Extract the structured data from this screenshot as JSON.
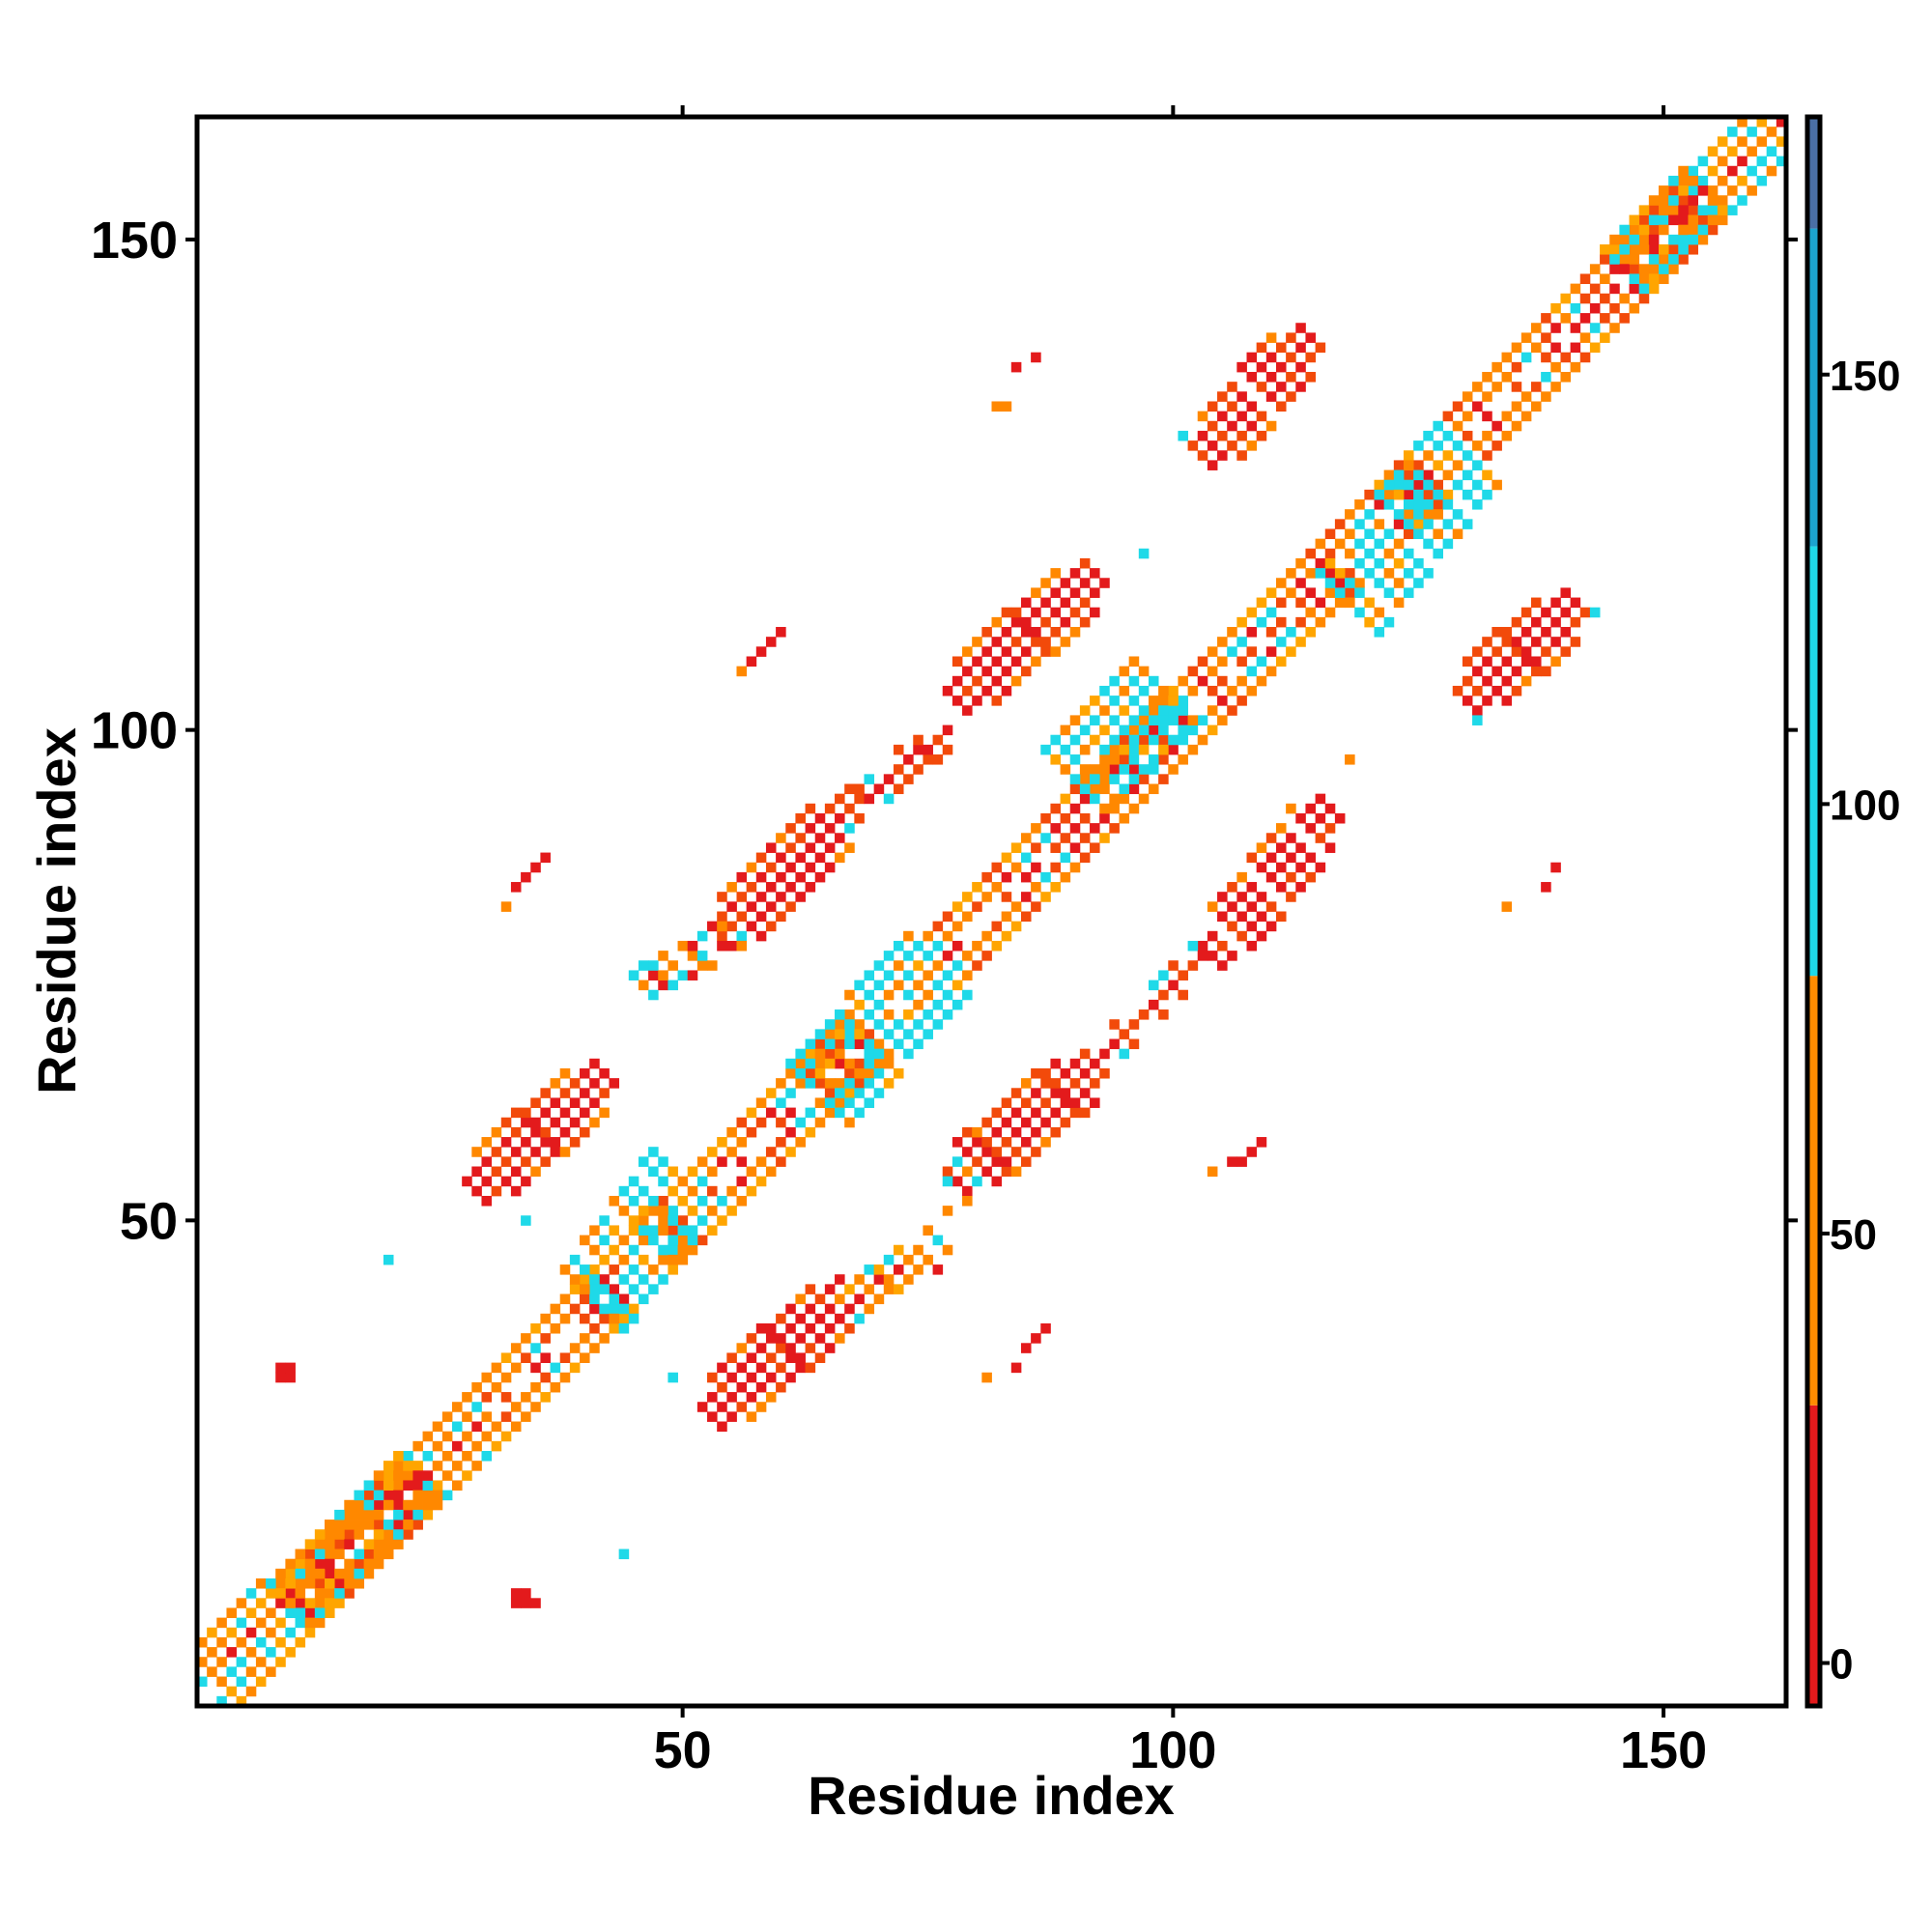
{
  "chart_data": {
    "type": "heatmap",
    "title": "",
    "xlabel": "Residue index",
    "ylabel": "Residue index",
    "xlim": [
      1,
      162
    ],
    "ylim": [
      1,
      162
    ],
    "x_ticks": [
      50,
      100,
      150
    ],
    "y_ticks": [
      50,
      100,
      150
    ],
    "grid": false,
    "legend": "colorbar-right",
    "colorbar": {
      "range": [
        -5,
        180
      ],
      "ticks": [
        0,
        50,
        100,
        150
      ],
      "stops": [
        {
          "from": -5,
          "to": 30,
          "color": "#e31a1c"
        },
        {
          "from": 30,
          "to": 80,
          "color": "#ff8c00"
        },
        {
          "from": 80,
          "to": 130,
          "color": "#1fd9e8"
        },
        {
          "from": 130,
          "to": 167,
          "color": "#1ca3cf"
        },
        {
          "from": 167,
          "to": 180,
          "color": "#4a6fa5"
        }
      ]
    },
    "class_colors": {
      "red": "#e31a1c",
      "redorange": "#f24a0a",
      "orange": "#ff8800",
      "amber": "#ffa500",
      "cyan": "#1fd9e8"
    },
    "regions": [
      {
        "kind": "diagonal",
        "x0": 1,
        "x1": 162,
        "width": 4,
        "pattern": "mix-orange-cyan"
      },
      {
        "kind": "band",
        "x0": 41,
        "x1": 50,
        "y0": 42,
        "y1": 54,
        "width": 6,
        "pattern": "cyan"
      },
      {
        "kind": "band",
        "x0": 64,
        "x1": 76,
        "y0": 63,
        "y1": 76,
        "width": 6,
        "pattern": "cyan"
      },
      {
        "kind": "band",
        "x0": 90,
        "x1": 99,
        "y0": 95,
        "y1": 104,
        "width": 6,
        "pattern": "cyan"
      },
      {
        "kind": "band",
        "x0": 118,
        "x1": 130,
        "y0": 113,
        "y1": 128,
        "width": 6,
        "pattern": "cyan"
      },
      {
        "kind": "band",
        "x0": 2,
        "x1": 30,
        "y0": 4,
        "y1": 30,
        "width": 4,
        "pattern": "cyan-sparse"
      },
      {
        "kind": "band",
        "x0": 146,
        "x1": 162,
        "y0": 147,
        "y1": 162,
        "width": 4,
        "pattern": "cyan-sparse"
      },
      {
        "kind": "blob",
        "x0": 29,
        "x1": 42,
        "y0": 53,
        "y1": 65,
        "width": 5,
        "pattern": "red-core"
      },
      {
        "kind": "blob",
        "x0": 53,
        "x1": 67,
        "y0": 30,
        "y1": 43,
        "width": 5,
        "pattern": "red-core"
      },
      {
        "kind": "blob",
        "x0": 54,
        "x1": 67,
        "y0": 79,
        "y1": 92,
        "width": 5,
        "pattern": "red-core"
      },
      {
        "kind": "blob",
        "x0": 78,
        "x1": 92,
        "y0": 54,
        "y1": 66,
        "width": 5,
        "pattern": "red-core"
      },
      {
        "kind": "blob",
        "x0": 78,
        "x1": 92,
        "y0": 103,
        "y1": 116,
        "width": 5,
        "pattern": "red-core"
      },
      {
        "kind": "blob",
        "x0": 104,
        "x1": 116,
        "y0": 77,
        "y1": 92,
        "width": 5,
        "pattern": "red-core"
      },
      {
        "kind": "blob",
        "x0": 103,
        "x1": 114,
        "y0": 128,
        "y1": 140,
        "width": 5,
        "pattern": "red-core"
      },
      {
        "kind": "blob",
        "x0": 130,
        "x1": 141,
        "y0": 103,
        "y1": 113,
        "width": 5,
        "pattern": "red-core"
      },
      {
        "kind": "blob",
        "x0": 66,
        "x1": 77,
        "y0": 91,
        "y1": 100,
        "width": 2,
        "pattern": "red-thin"
      },
      {
        "kind": "blob",
        "x0": 92,
        "x1": 103,
        "y0": 66,
        "y1": 77,
        "width": 2,
        "pattern": "red-thin"
      },
      {
        "kind": "blob",
        "x0": 46,
        "x1": 56,
        "y0": 74,
        "y1": 79,
        "width": 2,
        "pattern": "mixed-sparse"
      },
      {
        "kind": "blob",
        "x0": 75,
        "x1": 79,
        "y0": 46,
        "y1": 55,
        "width": 2,
        "pattern": "mixed-sparse"
      },
      {
        "kind": "blob",
        "x0": 67,
        "x1": 73,
        "y0": 41,
        "y1": 46,
        "width": 2,
        "pattern": "cyan-sparse"
      }
    ],
    "dots": [
      {
        "x": 9,
        "y": 34,
        "color": "red"
      },
      {
        "x": 10,
        "y": 34,
        "color": "red"
      },
      {
        "x": 9,
        "y": 35,
        "color": "red"
      },
      {
        "x": 10,
        "y": 35,
        "color": "red"
      },
      {
        "x": 33,
        "y": 11,
        "color": "red"
      },
      {
        "x": 34,
        "y": 11,
        "color": "red"
      },
      {
        "x": 35,
        "y": 11,
        "color": "red"
      },
      {
        "x": 33,
        "y": 12,
        "color": "red"
      },
      {
        "x": 34,
        "y": 12,
        "color": "red"
      },
      {
        "x": 20,
        "y": 46,
        "color": "cyan"
      },
      {
        "x": 34,
        "y": 50,
        "color": "cyan"
      },
      {
        "x": 44,
        "y": 16,
        "color": "cyan"
      },
      {
        "x": 49,
        "y": 34,
        "color": "cyan"
      },
      {
        "x": 57,
        "y": 107,
        "color": "red"
      },
      {
        "x": 58,
        "y": 108,
        "color": "red"
      },
      {
        "x": 59,
        "y": 109,
        "color": "red"
      },
      {
        "x": 60,
        "y": 110,
        "color": "red"
      },
      {
        "x": 56,
        "y": 106,
        "color": "orange"
      },
      {
        "x": 33,
        "y": 84,
        "color": "red"
      },
      {
        "x": 34,
        "y": 85,
        "color": "red"
      },
      {
        "x": 35,
        "y": 86,
        "color": "red"
      },
      {
        "x": 36,
        "y": 87,
        "color": "red"
      },
      {
        "x": 32,
        "y": 82,
        "color": "orange"
      },
      {
        "x": 85,
        "y": 37,
        "color": "red"
      },
      {
        "x": 86,
        "y": 38,
        "color": "red"
      },
      {
        "x": 87,
        "y": 39,
        "color": "red"
      },
      {
        "x": 84,
        "y": 35,
        "color": "red"
      },
      {
        "x": 81,
        "y": 34,
        "color": "orange"
      },
      {
        "x": 107,
        "y": 56,
        "color": "red"
      },
      {
        "x": 108,
        "y": 57,
        "color": "red"
      },
      {
        "x": 109,
        "y": 58,
        "color": "red"
      },
      {
        "x": 106,
        "y": 56,
        "color": "red"
      },
      {
        "x": 104,
        "y": 55,
        "color": "orange"
      },
      {
        "x": 84,
        "y": 137,
        "color": "red"
      },
      {
        "x": 86,
        "y": 138,
        "color": "red"
      },
      {
        "x": 82,
        "y": 133,
        "color": "orange"
      },
      {
        "x": 83,
        "y": 133,
        "color": "orange"
      },
      {
        "x": 138,
        "y": 84,
        "color": "red"
      },
      {
        "x": 139,
        "y": 86,
        "color": "red"
      },
      {
        "x": 134,
        "y": 82,
        "color": "orange"
      },
      {
        "x": 97,
        "y": 118,
        "color": "cyan"
      },
      {
        "x": 101,
        "y": 130,
        "color": "cyan"
      },
      {
        "x": 131,
        "y": 101,
        "color": "cyan"
      },
      {
        "x": 143,
        "y": 112,
        "color": "cyan"
      },
      {
        "x": 118,
        "y": 97,
        "color": "orange"
      }
    ]
  }
}
